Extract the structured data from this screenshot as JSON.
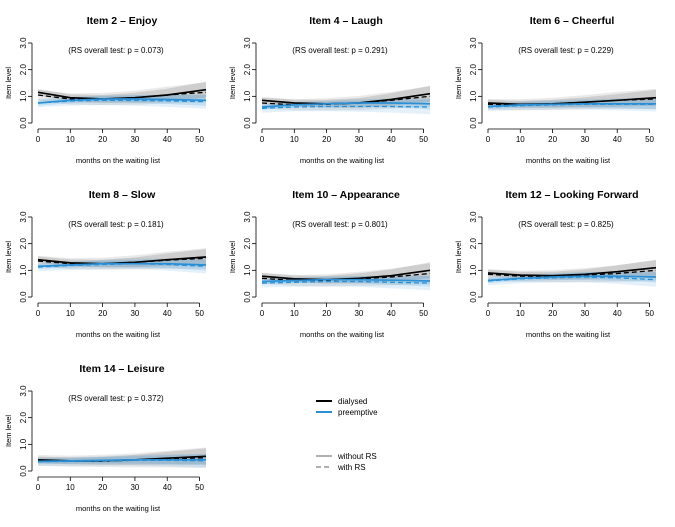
{
  "chart_data": {
    "type": "line",
    "xlabel": "months on the waiting list",
    "ylabel": "Item level",
    "xlim": [
      0,
      52
    ],
    "ylim": [
      0,
      3
    ],
    "xticks": [
      "0",
      "10",
      "20",
      "30",
      "40",
      "50"
    ],
    "yticks": [
      "0.0",
      "1.0",
      "2.0",
      "3.0"
    ],
    "x": [
      0,
      10,
      20,
      30,
      40,
      52
    ],
    "legend": {
      "groups": [
        {
          "name": "dialysed",
          "color": "#000000"
        },
        {
          "name": "preemptive",
          "color": "#2b8fd6"
        }
      ],
      "models": [
        {
          "name": "without RS",
          "style": "solid"
        },
        {
          "name": "with RS",
          "style": "dashed"
        }
      ]
    },
    "panels": [
      {
        "title": "Item 2 – Enjoy",
        "note": "(RS overall test: p = 0.073)",
        "series": [
          {
            "name": "dialysed",
            "model": "without RS",
            "values": [
              1.15,
              0.95,
              0.9,
              0.95,
              1.05,
              1.25
            ]
          },
          {
            "name": "dialysed",
            "model": "with RS",
            "values": [
              1.05,
              0.9,
              0.9,
              0.95,
              1.05,
              1.15
            ]
          },
          {
            "name": "preemptive",
            "model": "without RS",
            "values": [
              0.75,
              0.85,
              0.9,
              0.9,
              0.88,
              0.85
            ]
          },
          {
            "name": "preemptive",
            "model": "with RS",
            "values": [
              0.75,
              0.82,
              0.85,
              0.85,
              0.83,
              0.8
            ]
          }
        ]
      },
      {
        "title": "Item 4 – Laugh",
        "note": "(RS overall test: p = 0.291)",
        "series": [
          {
            "name": "dialysed",
            "model": "without RS",
            "values": [
              0.85,
              0.75,
              0.72,
              0.75,
              0.88,
              1.1
            ]
          },
          {
            "name": "dialysed",
            "model": "with RS",
            "values": [
              0.75,
              0.68,
              0.7,
              0.75,
              0.85,
              1.0
            ]
          },
          {
            "name": "preemptive",
            "model": "without RS",
            "values": [
              0.6,
              0.68,
              0.72,
              0.75,
              0.75,
              0.72
            ]
          },
          {
            "name": "preemptive",
            "model": "with RS",
            "values": [
              0.55,
              0.6,
              0.62,
              0.62,
              0.62,
              0.6
            ]
          }
        ]
      },
      {
        "title": "Item 6 – Cheerful",
        "note": "(RS overall test: p = 0.229)",
        "series": [
          {
            "name": "dialysed",
            "model": "without RS",
            "values": [
              0.75,
              0.7,
              0.72,
              0.78,
              0.85,
              0.95
            ]
          },
          {
            "name": "dialysed",
            "model": "with RS",
            "values": [
              0.7,
              0.68,
              0.72,
              0.78,
              0.85,
              0.9
            ]
          },
          {
            "name": "preemptive",
            "model": "without RS",
            "values": [
              0.62,
              0.68,
              0.7,
              0.72,
              0.72,
              0.72
            ]
          },
          {
            "name": "preemptive",
            "model": "with RS",
            "values": [
              0.6,
              0.65,
              0.68,
              0.7,
              0.7,
              0.7
            ]
          }
        ]
      },
      {
        "title": "Item 8 – Slow",
        "note": "(RS overall test: p = 0.181)",
        "series": [
          {
            "name": "dialysed",
            "model": "without RS",
            "values": [
              1.4,
              1.28,
              1.25,
              1.3,
              1.4,
              1.5
            ]
          },
          {
            "name": "dialysed",
            "model": "with RS",
            "values": [
              1.35,
              1.25,
              1.25,
              1.3,
              1.38,
              1.45
            ]
          },
          {
            "name": "preemptive",
            "model": "without RS",
            "values": [
              1.15,
              1.2,
              1.25,
              1.25,
              1.25,
              1.2
            ]
          },
          {
            "name": "preemptive",
            "model": "with RS",
            "values": [
              1.12,
              1.18,
              1.22,
              1.25,
              1.22,
              1.15
            ]
          }
        ]
      },
      {
        "title": "Item 10 – Appearance",
        "note": "(RS overall test: p = 0.801)",
        "series": [
          {
            "name": "dialysed",
            "model": "without RS",
            "values": [
              0.78,
              0.68,
              0.65,
              0.7,
              0.8,
              1.0
            ]
          },
          {
            "name": "dialysed",
            "model": "with RS",
            "values": [
              0.7,
              0.62,
              0.62,
              0.68,
              0.75,
              0.88
            ]
          },
          {
            "name": "preemptive",
            "model": "without RS",
            "values": [
              0.58,
              0.62,
              0.65,
              0.65,
              0.63,
              0.6
            ]
          },
          {
            "name": "preemptive",
            "model": "with RS",
            "values": [
              0.52,
              0.55,
              0.58,
              0.58,
              0.55,
              0.52
            ]
          }
        ]
      },
      {
        "title": "Item 12 – Looking Forward",
        "note": "(RS overall test: p = 0.825)",
        "series": [
          {
            "name": "dialysed",
            "model": "without RS",
            "values": [
              0.9,
              0.82,
              0.8,
              0.85,
              0.95,
              1.1
            ]
          },
          {
            "name": "dialysed",
            "model": "with RS",
            "values": [
              0.85,
              0.78,
              0.78,
              0.82,
              0.88,
              1.0
            ]
          },
          {
            "name": "preemptive",
            "model": "without RS",
            "values": [
              0.62,
              0.7,
              0.75,
              0.78,
              0.78,
              0.75
            ]
          },
          {
            "name": "preemptive",
            "model": "with RS",
            "values": [
              0.6,
              0.68,
              0.72,
              0.75,
              0.72,
              0.65
            ]
          }
        ]
      },
      {
        "title": "Item 14 – Leisure",
        "note": "(RS overall test: p = 0.372)",
        "series": [
          {
            "name": "dialysed",
            "model": "without RS",
            "values": [
              0.42,
              0.38,
              0.38,
              0.42,
              0.48,
              0.55
            ]
          },
          {
            "name": "dialysed",
            "model": "with RS",
            "values": [
              0.4,
              0.37,
              0.38,
              0.4,
              0.45,
              0.5
            ]
          },
          {
            "name": "preemptive",
            "model": "without RS",
            "values": [
              0.36,
              0.38,
              0.4,
              0.42,
              0.42,
              0.42
            ]
          },
          {
            "name": "preemptive",
            "model": "with RS",
            "values": [
              0.35,
              0.36,
              0.38,
              0.4,
              0.4,
              0.38
            ]
          }
        ]
      }
    ]
  }
}
